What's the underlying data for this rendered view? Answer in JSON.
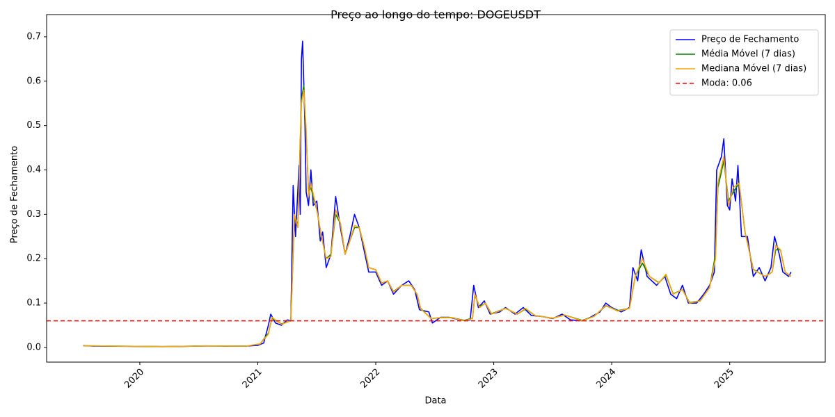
{
  "chart_data": {
    "type": "line",
    "title": "Preço ao longo do tempo: DOGEUSDT",
    "x_label": "Data",
    "y_label": "Preço de Fechamento",
    "xlim": [
      2019.21,
      2025.81
    ],
    "xticks": [
      2020,
      2021,
      2022,
      2023,
      2024,
      2025
    ],
    "ylim": [
      -0.033,
      0.75
    ],
    "yticks": [
      {
        "value": 0,
        "label": "0.0"
      },
      0.1,
      0.2,
      0.3,
      0.4,
      0.5,
      0.6,
      0.7
    ],
    "legend": "upper right",
    "series": [
      {
        "name": "Preço de Fechamento",
        "color": "#0000ff",
        "x": [
          2019.52,
          2019.6,
          2019.8,
          2020.0,
          2020.2,
          2020.4,
          2020.55,
          2020.7,
          2020.9,
          2021.0,
          2021.05,
          2021.09,
          2021.11,
          2021.15,
          2021.2,
          2021.25,
          2021.28,
          2021.3,
          2021.32,
          2021.35,
          2021.36,
          2021.37,
          2021.38,
          2021.4,
          2021.41,
          2021.43,
          2021.45,
          2021.47,
          2021.5,
          2021.53,
          2021.55,
          2021.58,
          2021.62,
          2021.66,
          2021.7,
          2021.74,
          2021.78,
          2021.82,
          2021.86,
          2021.9,
          2021.94,
          2022.0,
          2022.05,
          2022.1,
          2022.15,
          2022.22,
          2022.28,
          2022.33,
          2022.37,
          2022.45,
          2022.48,
          2022.55,
          2022.62,
          2022.7,
          2022.75,
          2022.8,
          2022.83,
          2022.87,
          2022.92,
          2022.97,
          2023.05,
          2023.1,
          2023.18,
          2023.25,
          2023.32,
          2023.4,
          2023.5,
          2023.58,
          2023.65,
          2023.75,
          2023.82,
          2023.9,
          2023.95,
          2024.0,
          2024.08,
          2024.15,
          2024.18,
          2024.22,
          2024.25,
          2024.3,
          2024.38,
          2024.45,
          2024.5,
          2024.55,
          2024.6,
          2024.65,
          2024.72,
          2024.78,
          2024.83,
          2024.87,
          2024.89,
          2024.93,
          2024.95,
          2024.98,
          2025.0,
          2025.02,
          2025.05,
          2025.07,
          2025.1,
          2025.15,
          2025.2,
          2025.25,
          2025.3,
          2025.35,
          2025.38,
          2025.42,
          2025.45,
          2025.5,
          2025.52
        ],
        "values": [
          0.0045,
          0.003,
          0.0027,
          0.0022,
          0.0018,
          0.0025,
          0.0035,
          0.003,
          0.003,
          0.0047,
          0.01,
          0.05,
          0.075,
          0.055,
          0.05,
          0.062,
          0.06,
          0.365,
          0.25,
          0.41,
          0.3,
          0.65,
          0.69,
          0.5,
          0.35,
          0.32,
          0.4,
          0.32,
          0.33,
          0.24,
          0.26,
          0.18,
          0.21,
          0.34,
          0.27,
          0.21,
          0.25,
          0.3,
          0.27,
          0.22,
          0.17,
          0.17,
          0.14,
          0.15,
          0.12,
          0.14,
          0.15,
          0.13,
          0.085,
          0.08,
          0.055,
          0.068,
          0.068,
          0.063,
          0.06,
          0.062,
          0.14,
          0.09,
          0.105,
          0.075,
          0.08,
          0.09,
          0.075,
          0.09,
          0.072,
          0.07,
          0.065,
          0.075,
          0.062,
          0.06,
          0.068,
          0.08,
          0.1,
          0.09,
          0.08,
          0.09,
          0.18,
          0.15,
          0.22,
          0.16,
          0.14,
          0.16,
          0.12,
          0.11,
          0.14,
          0.1,
          0.1,
          0.12,
          0.14,
          0.17,
          0.4,
          0.43,
          0.47,
          0.32,
          0.31,
          0.38,
          0.33,
          0.41,
          0.25,
          0.25,
          0.16,
          0.18,
          0.15,
          0.18,
          0.25,
          0.21,
          0.17,
          0.16,
          0.17
        ]
      },
      {
        "name": "Média Móvel (7 dias)",
        "color": "#008000",
        "x": [
          2019.52,
          2019.8,
          2020.2,
          2020.55,
          2020.9,
          2021.02,
          2021.09,
          2021.12,
          2021.2,
          2021.28,
          2021.31,
          2021.34,
          2021.37,
          2021.39,
          2021.41,
          2021.43,
          2021.45,
          2021.5,
          2021.54,
          2021.58,
          2021.62,
          2021.66,
          2021.7,
          2021.74,
          2021.78,
          2021.82,
          2021.86,
          2021.9,
          2021.94,
          2022.0,
          2022.05,
          2022.1,
          2022.15,
          2022.22,
          2022.3,
          2022.35,
          2022.38,
          2022.47,
          2022.55,
          2022.65,
          2022.75,
          2022.82,
          2022.84,
          2022.88,
          2022.93,
          2022.98,
          2023.1,
          2023.2,
          2023.27,
          2023.35,
          2023.5,
          2023.6,
          2023.75,
          2023.85,
          2023.95,
          2024.05,
          2024.15,
          2024.2,
          2024.26,
          2024.32,
          2024.4,
          2024.46,
          2024.52,
          2024.6,
          2024.66,
          2024.75,
          2024.83,
          2024.88,
          2024.9,
          2024.95,
          2024.99,
          2025.03,
          2025.08,
          2025.13,
          2025.2,
          2025.3,
          2025.36,
          2025.39,
          2025.43,
          2025.47,
          2025.52
        ],
        "values": [
          0.004,
          0.0028,
          0.002,
          0.0033,
          0.003,
          0.008,
          0.032,
          0.066,
          0.053,
          0.06,
          0.29,
          0.28,
          0.56,
          0.59,
          0.48,
          0.35,
          0.36,
          0.31,
          0.25,
          0.2,
          0.21,
          0.3,
          0.28,
          0.21,
          0.24,
          0.27,
          0.27,
          0.23,
          0.18,
          0.175,
          0.145,
          0.15,
          0.126,
          0.14,
          0.14,
          0.12,
          0.088,
          0.065,
          0.067,
          0.067,
          0.061,
          0.066,
          0.118,
          0.092,
          0.1,
          0.076,
          0.088,
          0.075,
          0.087,
          0.072,
          0.066,
          0.073,
          0.061,
          0.07,
          0.094,
          0.083,
          0.088,
          0.16,
          0.19,
          0.16,
          0.146,
          0.163,
          0.121,
          0.13,
          0.101,
          0.105,
          0.135,
          0.21,
          0.36,
          0.42,
          0.33,
          0.35,
          0.37,
          0.26,
          0.176,
          0.16,
          0.17,
          0.22,
          0.22,
          0.17,
          0.16
        ]
      },
      {
        "name": "Mediana Móvel (7 dias)",
        "color": "#ffa500",
        "x": [
          2019.52,
          2019.8,
          2020.2,
          2020.55,
          2020.9,
          2021.02,
          2021.09,
          2021.12,
          2021.2,
          2021.28,
          2021.31,
          2021.34,
          2021.37,
          2021.39,
          2021.41,
          2021.43,
          2021.45,
          2021.5,
          2021.54,
          2021.58,
          2021.62,
          2021.66,
          2021.7,
          2021.74,
          2021.78,
          2021.82,
          2021.86,
          2021.9,
          2021.94,
          2022.0,
          2022.05,
          2022.1,
          2022.15,
          2022.22,
          2022.3,
          2022.35,
          2022.38,
          2022.47,
          2022.55,
          2022.65,
          2022.75,
          2022.82,
          2022.84,
          2022.88,
          2022.93,
          2022.98,
          2023.1,
          2023.2,
          2023.27,
          2023.35,
          2023.5,
          2023.6,
          2023.75,
          2023.85,
          2023.95,
          2024.05,
          2024.15,
          2024.2,
          2024.26,
          2024.32,
          2024.4,
          2024.46,
          2024.52,
          2024.6,
          2024.66,
          2024.75,
          2024.83,
          2024.88,
          2024.9,
          2024.95,
          2024.99,
          2025.03,
          2025.08,
          2025.13,
          2025.2,
          2025.3,
          2025.36,
          2025.39,
          2025.43,
          2025.47,
          2025.52
        ],
        "values": [
          0.004,
          0.0028,
          0.002,
          0.0033,
          0.003,
          0.008,
          0.03,
          0.068,
          0.052,
          0.06,
          0.3,
          0.27,
          0.55,
          0.58,
          0.49,
          0.34,
          0.37,
          0.31,
          0.25,
          0.2,
          0.205,
          0.31,
          0.28,
          0.21,
          0.24,
          0.275,
          0.27,
          0.23,
          0.18,
          0.175,
          0.145,
          0.15,
          0.125,
          0.14,
          0.14,
          0.12,
          0.087,
          0.065,
          0.067,
          0.067,
          0.06,
          0.065,
          0.12,
          0.09,
          0.1,
          0.075,
          0.088,
          0.075,
          0.088,
          0.072,
          0.066,
          0.073,
          0.06,
          0.07,
          0.095,
          0.082,
          0.088,
          0.16,
          0.2,
          0.16,
          0.145,
          0.165,
          0.12,
          0.13,
          0.1,
          0.105,
          0.135,
          0.2,
          0.37,
          0.43,
          0.32,
          0.36,
          0.37,
          0.26,
          0.175,
          0.16,
          0.17,
          0.23,
          0.22,
          0.17,
          0.16
        ]
      }
    ],
    "hlines": [
      {
        "name": "Moda: 0.06",
        "value": 0.06,
        "color": "#ff0000"
      }
    ]
  }
}
